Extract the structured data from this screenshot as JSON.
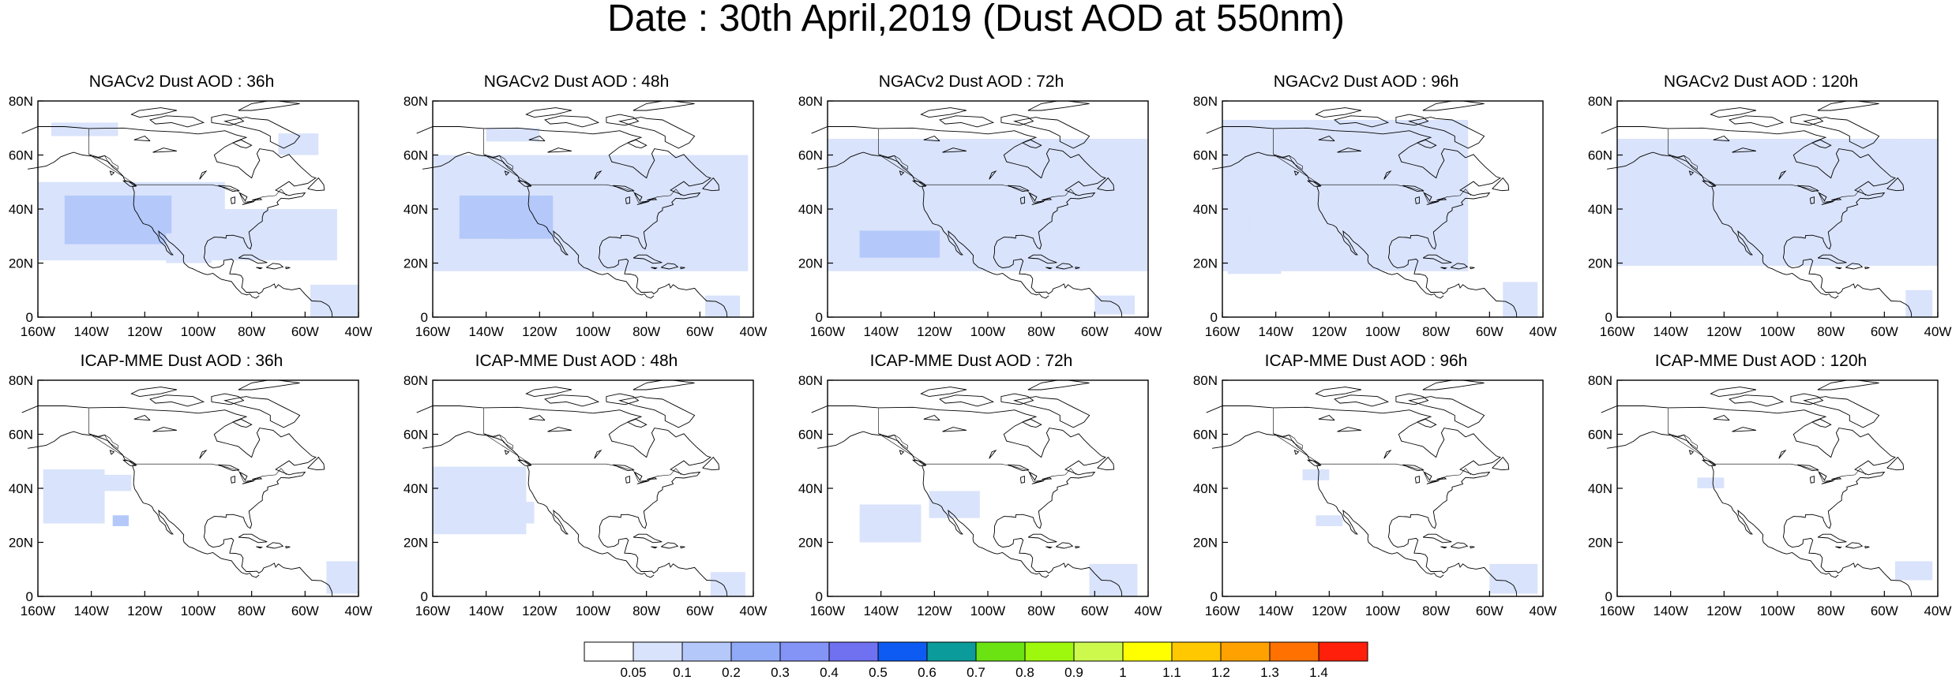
{
  "title": "Date : 30th April,2019 (Dust AOD at 550nm)",
  "map_extent": {
    "lon": [
      -160,
      -40
    ],
    "lat": [
      0,
      80
    ]
  },
  "axes": {
    "x_ticks": [
      {
        "lon": -160,
        "label": "160W"
      },
      {
        "lon": -140,
        "label": "140W"
      },
      {
        "lon": -120,
        "label": "120W"
      },
      {
        "lon": -100,
        "label": "100W"
      },
      {
        "lon": -80,
        "label": "80W"
      },
      {
        "lon": -60,
        "label": "60W"
      },
      {
        "lon": -40,
        "label": "40W"
      }
    ],
    "y_ticks": [
      {
        "lat": 0,
        "label": "0"
      },
      {
        "lat": 20,
        "label": "20N"
      },
      {
        "lat": 40,
        "label": "40N"
      },
      {
        "lat": 60,
        "label": "60N"
      },
      {
        "lat": 80,
        "label": "80N"
      }
    ]
  },
  "colorbar": {
    "labels": [
      "0.05",
      "0.1",
      "0.2",
      "0.3",
      "0.4",
      "0.5",
      "0.6",
      "0.7",
      "0.8",
      "0.9",
      "1",
      "1.1",
      "1.2",
      "1.3",
      "1.4"
    ],
    "colors": [
      "#ffffff",
      "#d9e3fb",
      "#b4c8fa",
      "#91aaf8",
      "#8494f6",
      "#6f71f1",
      "#0d5bf2",
      "#0b9b9b",
      "#6be313",
      "#9ef80e",
      "#cdf94d",
      "#ffff00",
      "#ffc800",
      "#ffa100",
      "#ff7100",
      "#ff1f0a"
    ]
  },
  "panels": [
    {
      "title": "NGACv2 Dust AOD : 36h",
      "model": "ngac",
      "forecast_hour": 36
    },
    {
      "title": "NGACv2 Dust AOD : 48h",
      "model": "ngac",
      "forecast_hour": 48
    },
    {
      "title": "NGACv2 Dust AOD : 72h",
      "model": "ngac",
      "forecast_hour": 72
    },
    {
      "title": "NGACv2 Dust AOD : 96h",
      "model": "ngac",
      "forecast_hour": 96
    },
    {
      "title": "NGACv2 Dust AOD : 120h",
      "model": "ngac",
      "forecast_hour": 120
    },
    {
      "title": "ICAP-MME Dust AOD : 36h",
      "model": "icap",
      "forecast_hour": 36
    },
    {
      "title": "ICAP-MME Dust AOD : 48h",
      "model": "icap",
      "forecast_hour": 48
    },
    {
      "title": "ICAP-MME Dust AOD : 72h",
      "model": "icap",
      "forecast_hour": 72
    },
    {
      "title": "ICAP-MME Dust AOD : 96h",
      "model": "icap",
      "forecast_hour": 96
    },
    {
      "title": "ICAP-MME Dust AOD : 120h",
      "model": "icap",
      "forecast_hour": 120
    }
  ]
}
